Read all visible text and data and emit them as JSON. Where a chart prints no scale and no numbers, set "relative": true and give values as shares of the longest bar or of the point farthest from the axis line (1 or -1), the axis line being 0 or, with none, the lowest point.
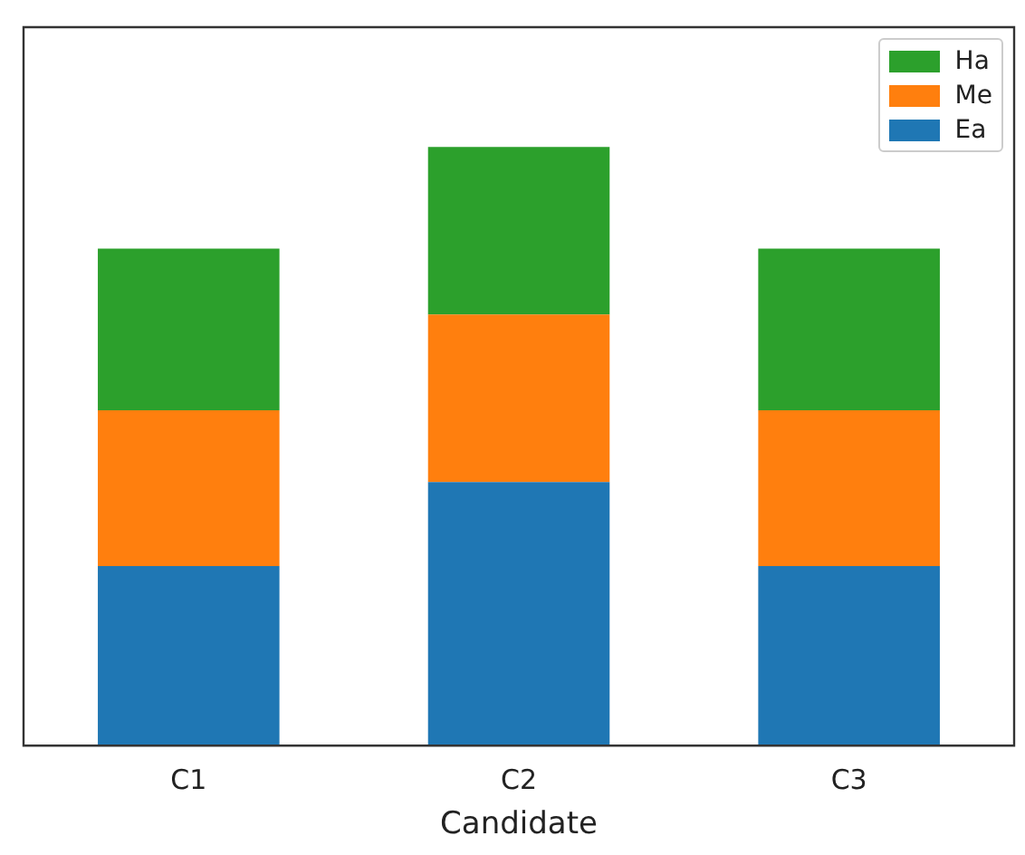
{
  "chart_data": {
    "type": "bar",
    "xlabel": "Candidate",
    "categories": [
      "C1",
      "C2",
      "C3"
    ],
    "stacked": true,
    "relative": true,
    "legend": "top right",
    "series": [
      {
        "name": "Ea",
        "color": "#1f77b4",
        "values": [
          0.3,
          0.44,
          0.3
        ]
      },
      {
        "name": "Me",
        "color": "#ff7f0e",
        "values": [
          0.26,
          0.28,
          0.26
        ]
      },
      {
        "name": "Ha",
        "color": "#2ca02c",
        "values": [
          0.27,
          0.28,
          0.27
        ]
      }
    ]
  }
}
